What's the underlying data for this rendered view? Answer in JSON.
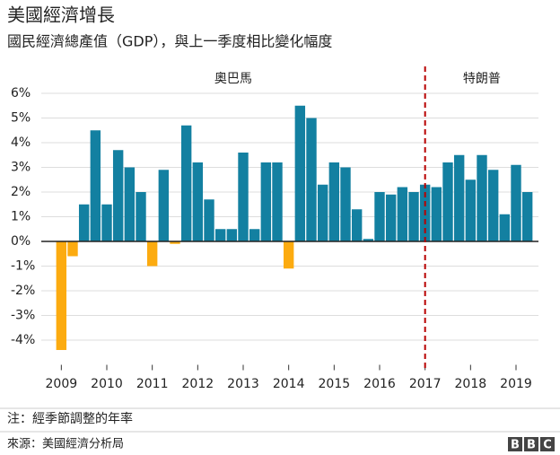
{
  "chart_data": {
    "type": "bar",
    "title": "美國經濟增長",
    "subtitle": "國民經濟總產值（GDP），與上一季度相比變化幅度",
    "categories": [
      "2009",
      null,
      null,
      null,
      "2010",
      null,
      null,
      null,
      "2011",
      null,
      null,
      null,
      "2012",
      null,
      null,
      null,
      "2013",
      null,
      null,
      null,
      "2014",
      null,
      null,
      null,
      "2015",
      null,
      null,
      null,
      "2016",
      null,
      null,
      null,
      "2017",
      null,
      null,
      null,
      "2018",
      null,
      null,
      null,
      "2019",
      null
    ],
    "series": [
      {
        "color": "#1380a1",
        "negative_color": "#fcab10",
        "values": [
          -4.4,
          -0.6,
          1.5,
          4.5,
          1.5,
          3.7,
          3.0,
          2.0,
          -1.0,
          2.9,
          -0.1,
          4.7,
          3.2,
          1.7,
          0.5,
          0.5,
          3.6,
          0.5,
          3.2,
          3.2,
          -1.1,
          5.5,
          5.0,
          2.3,
          3.2,
          3.0,
          1.3,
          0.1,
          2.0,
          1.9,
          2.2,
          2.0,
          2.3,
          2.2,
          3.2,
          3.5,
          2.5,
          3.5,
          2.9,
          1.1,
          3.1,
          2.0
        ]
      }
    ],
    "ylim": [
      -5,
      6
    ],
    "yticks": [
      {
        "value": -4,
        "label": "-4%"
      },
      {
        "value": -3,
        "label": "-3%"
      },
      {
        "value": -2,
        "label": "-2%"
      },
      {
        "value": -1,
        "label": "-1%"
      },
      {
        "value": 0,
        "label": "0%"
      },
      {
        "value": 1,
        "label": "1%"
      },
      {
        "value": 2,
        "label": "2%"
      },
      {
        "value": 3,
        "label": "3%"
      },
      {
        "value": 4,
        "label": "4%"
      },
      {
        "value": 5,
        "label": "5%"
      },
      {
        "value": 6,
        "label": "6%"
      }
    ],
    "grid": true,
    "divider": {
      "at": "2017",
      "color": "#b80000"
    },
    "periods": [
      "奧巴馬",
      "特朗普"
    ],
    "note": "注：經季節調整的年率",
    "source": "來源：美國經濟分析局",
    "logo": "BBC"
  }
}
